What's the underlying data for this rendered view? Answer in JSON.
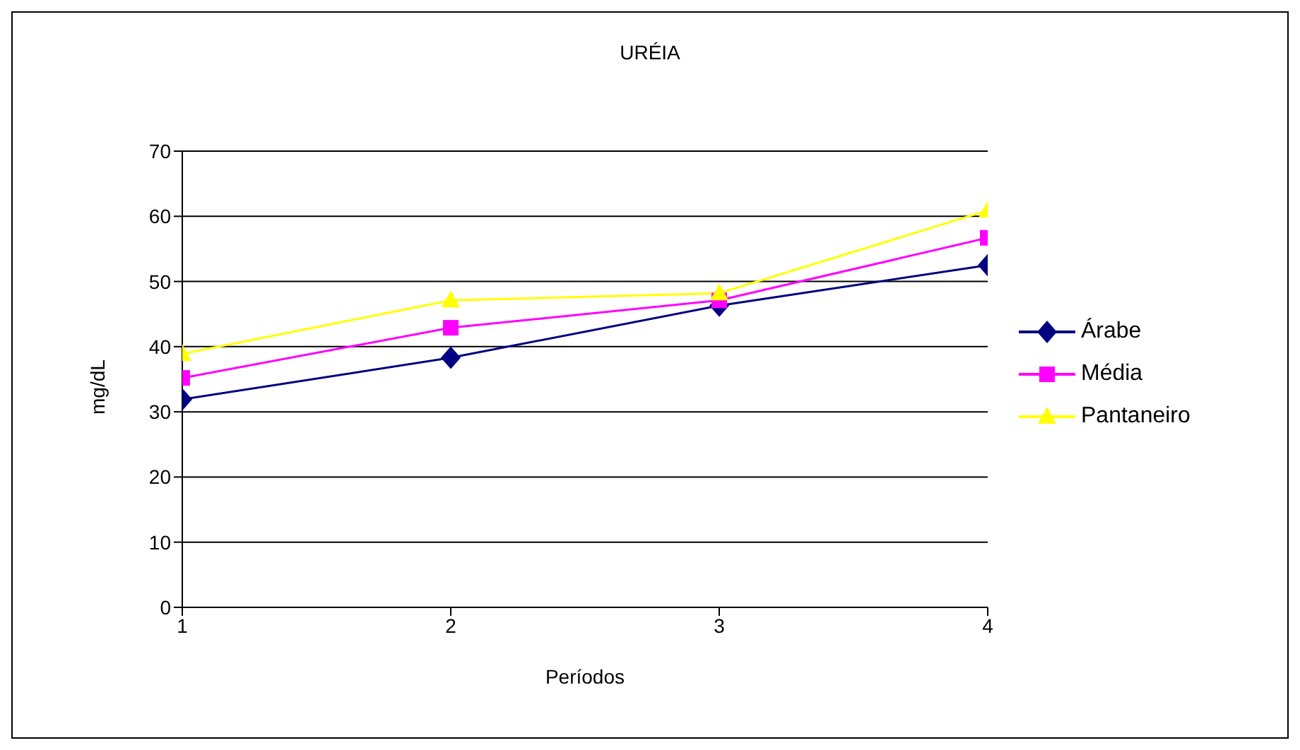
{
  "chart_data": {
    "type": "line",
    "title": "URÉIA",
    "xlabel": "Períodos",
    "ylabel": "mg/dL",
    "x": [
      1,
      2,
      3,
      4
    ],
    "xlim": [
      1,
      4
    ],
    "xticks": [
      1,
      2,
      3,
      4
    ],
    "ylim": [
      0,
      70
    ],
    "yticks": [
      0,
      10,
      20,
      30,
      40,
      50,
      60,
      70
    ],
    "grid": "y",
    "legend": "right",
    "series": [
      {
        "name": "Árabe",
        "color": "#000080",
        "marker": "diamond",
        "values": [
          31.9,
          38.3,
          46.3,
          52.5
        ]
      },
      {
        "name": "Média",
        "color": "#ff00ff",
        "marker": "square",
        "values": [
          35.2,
          42.9,
          47.1,
          56.7
        ]
      },
      {
        "name": "Pantaneiro",
        "color": "#ffff00",
        "marker": "triangle",
        "values": [
          38.9,
          47.1,
          48.2,
          60.9
        ]
      }
    ]
  }
}
